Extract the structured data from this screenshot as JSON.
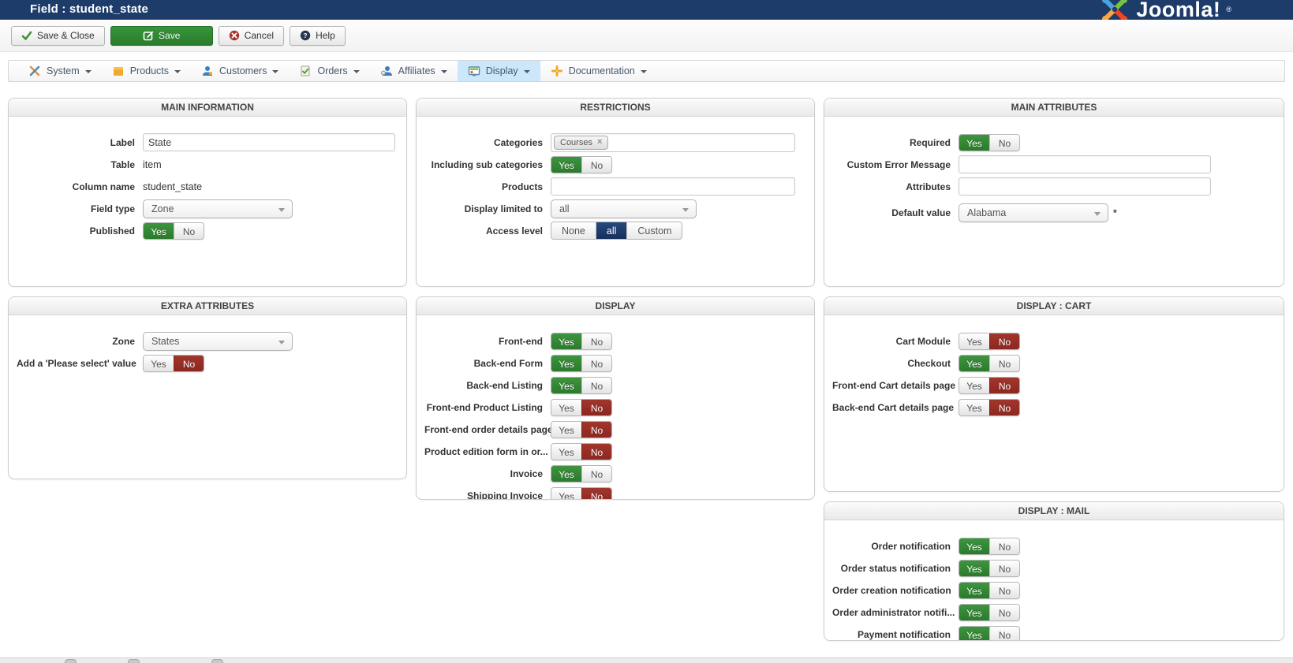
{
  "titlebar": {
    "title": "Field : student_state",
    "logo_text": "Joomla!",
    "logo_reg": "®"
  },
  "toolbar": {
    "save_close": "Save & Close",
    "save": "Save",
    "cancel": "Cancel",
    "help": "Help"
  },
  "menu": {
    "active": "Display",
    "items": [
      {
        "label": "System",
        "icon": "tools-icon"
      },
      {
        "label": "Products",
        "icon": "box-icon"
      },
      {
        "label": "Customers",
        "icon": "person-icon"
      },
      {
        "label": "Orders",
        "icon": "order-check-icon"
      },
      {
        "label": "Affiliates",
        "icon": "affiliate-person-icon"
      },
      {
        "label": "Display",
        "icon": "monitor-icon"
      },
      {
        "label": "Documentation",
        "icon": "pinwheel-icon"
      }
    ]
  },
  "toggle_labels": {
    "yes": "Yes",
    "no": "No"
  },
  "colors": {
    "navy": "#1d3c6a",
    "green": "#2e8b30",
    "red": "#9a2a21",
    "menu_active": "#cbe7f9"
  },
  "panels": {
    "main_information": {
      "title": "MAIN INFORMATION",
      "label_field": {
        "label": "Label",
        "value": "State"
      },
      "table": {
        "label": "Table",
        "value": "item"
      },
      "column_name": {
        "label": "Column name",
        "value": "student_state"
      },
      "field_type": {
        "label": "Field type",
        "value": "Zone"
      },
      "published": {
        "label": "Published",
        "value": "Yes"
      }
    },
    "restrictions": {
      "title": "RESTRICTIONS",
      "categories": {
        "label": "Categories",
        "chips": [
          "Courses"
        ],
        "remove_glyph": "×"
      },
      "sub_categories": {
        "label": "Including sub categories",
        "value": "Yes"
      },
      "products": {
        "label": "Products",
        "value": ""
      },
      "display_limited": {
        "label": "Display limited to",
        "value": "all"
      },
      "access_level": {
        "label": "Access level",
        "options": [
          "None",
          "all",
          "Custom"
        ],
        "value": "all"
      }
    },
    "main_attributes": {
      "title": "MAIN ATTRIBUTES",
      "required": {
        "label": "Required",
        "value": "Yes"
      },
      "custom_error": {
        "label": "Custom Error Message",
        "value": ""
      },
      "attributes": {
        "label": "Attributes",
        "value": ""
      },
      "default_value": {
        "label": "Default value",
        "value": "Alabama",
        "suffix": "*"
      }
    },
    "extra_attributes": {
      "title": "EXTRA ATTRIBUTES",
      "zone": {
        "label": "Zone",
        "value": "States"
      },
      "please_select": {
        "label": "Add a 'Please select' value",
        "value": "No"
      }
    },
    "display": {
      "title": "DISPLAY",
      "rows": [
        {
          "label": "Front-end",
          "value": "Yes"
        },
        {
          "label": "Back-end Form",
          "value": "Yes"
        },
        {
          "label": "Back-end Listing",
          "value": "Yes"
        },
        {
          "label": "Front-end Product Listing",
          "value": "No"
        },
        {
          "label": "Front-end order details page",
          "value": "No"
        },
        {
          "label": "Product edition form in or...",
          "value": "No"
        },
        {
          "label": "Invoice",
          "value": "Yes"
        },
        {
          "label": "Shipping Invoice",
          "value": "No"
        }
      ]
    },
    "display_cart": {
      "title": "DISPLAY : CART",
      "rows": [
        {
          "label": "Cart Module",
          "value": "No"
        },
        {
          "label": "Checkout",
          "value": "Yes"
        },
        {
          "label": "Front-end Cart details page",
          "value": "No"
        },
        {
          "label": "Back-end Cart details page",
          "value": "No"
        }
      ]
    },
    "display_mail": {
      "title": "DISPLAY : MAIL",
      "rows": [
        {
          "label": "Order notification",
          "value": "Yes"
        },
        {
          "label": "Order status notification",
          "value": "Yes"
        },
        {
          "label": "Order creation notification",
          "value": "Yes"
        },
        {
          "label": "Order administrator notifi...",
          "value": "Yes"
        },
        {
          "label": "Payment notification",
          "value": "Yes"
        }
      ]
    }
  }
}
